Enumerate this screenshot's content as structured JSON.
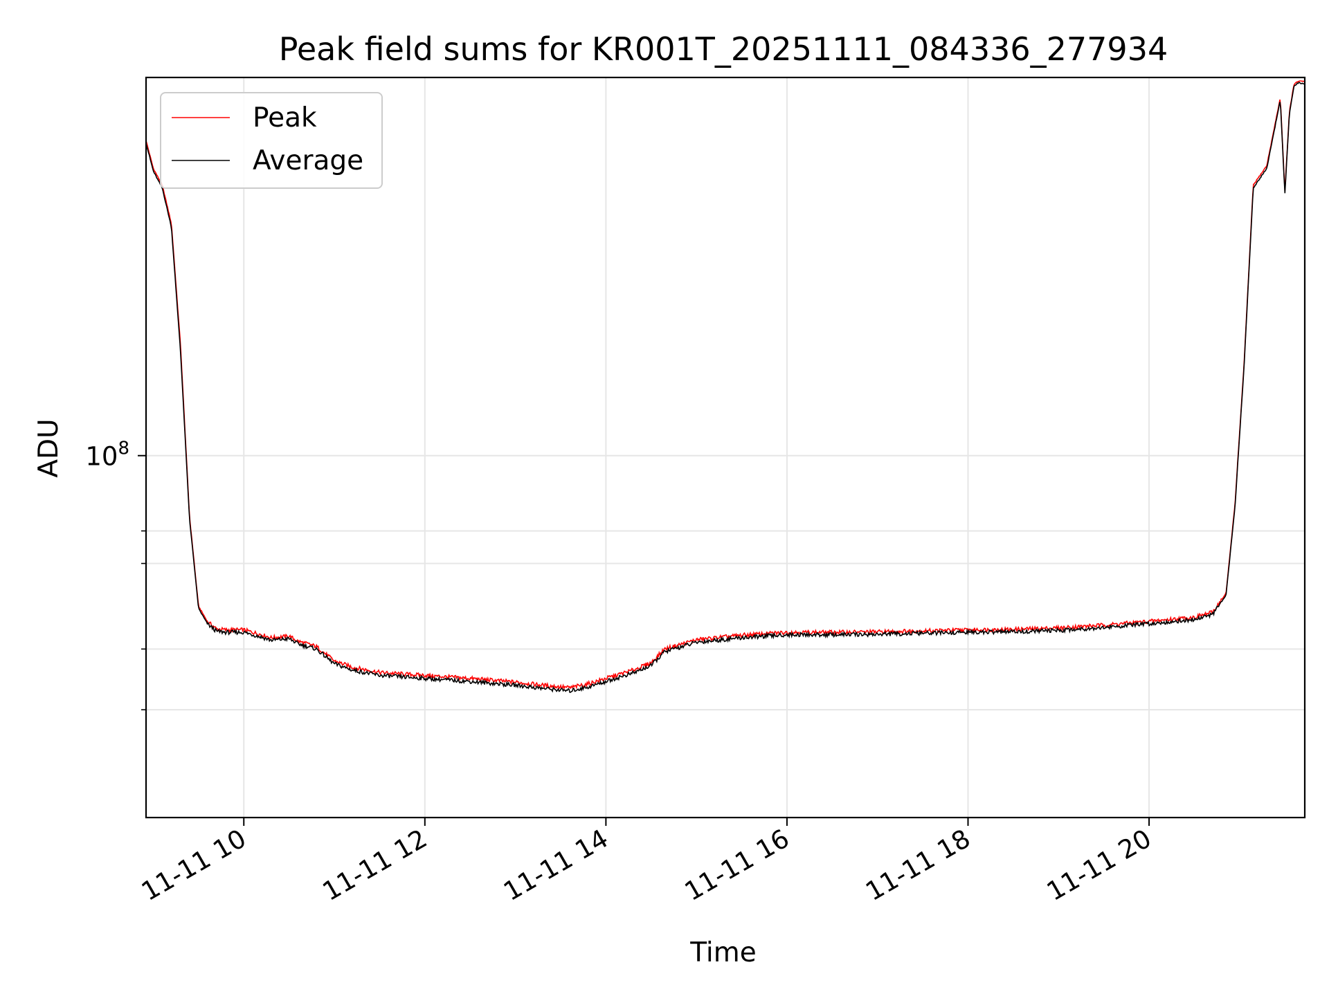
{
  "chart_data": {
    "type": "line",
    "title": "Peak field sums for KR001T_20251111_084336_277934",
    "xlabel": "Time",
    "ylabel": "ADU",
    "yscale": "log",
    "grid": true,
    "legend_position": "top-left",
    "xlim_hours": [
      8.92,
      21.72
    ],
    "ylim": [
      18000000,
      600000000
    ],
    "x_ticks": [
      {
        "value": 10,
        "label": "11-11 10"
      },
      {
        "value": 12,
        "label": "11-11 12"
      },
      {
        "value": 14,
        "label": "11-11 14"
      },
      {
        "value": 16,
        "label": "11-11 16"
      },
      {
        "value": 18,
        "label": "11-11 18"
      },
      {
        "value": 20,
        "label": "11-11 20"
      }
    ],
    "y_major_ticks": [
      {
        "value": 100000000,
        "base": "10",
        "exp": "8"
      }
    ],
    "y_minor_ticks": [
      30000000,
      40000000,
      60000000,
      70000000
    ],
    "x_hours": [
      8.92,
      9.0,
      9.1,
      9.2,
      9.3,
      9.4,
      9.5,
      9.6,
      9.7,
      9.8,
      10.0,
      10.2,
      10.3,
      10.5,
      10.6,
      10.8,
      11.0,
      11.2,
      11.5,
      12.0,
      12.5,
      13.0,
      13.3,
      13.6,
      13.8,
      14.0,
      14.3,
      14.5,
      14.65,
      15.0,
      15.5,
      16.0,
      16.5,
      17.0,
      17.5,
      18.0,
      18.5,
      19.0,
      19.5,
      20.0,
      20.5,
      20.7,
      20.85,
      20.95,
      21.05,
      21.15,
      21.3,
      21.45,
      21.5,
      21.55,
      21.6,
      21.65,
      21.72
    ],
    "series": [
      {
        "name": "Peak",
        "color": "#ff0000",
        "values": [
          445000000,
          390000000,
          360000000,
          300000000,
          170000000,
          75000000,
          49000000,
          45500000,
          44000000,
          43800000,
          43800000,
          42800000,
          42200000,
          42500000,
          41500000,
          40500000,
          37800000,
          36700000,
          35800000,
          35300000,
          34800000,
          34200000,
          33700000,
          33300000,
          33900000,
          34800000,
          36200000,
          37500000,
          40000000,
          41800000,
          42700000,
          43300000,
          43300000,
          43400000,
          43600000,
          43800000,
          43900000,
          44200000,
          44800000,
          45600000,
          46500000,
          47600000,
          52000000,
          80000000,
          155000000,
          360000000,
          395000000,
          545000000,
          350000000,
          510000000,
          580000000,
          590000000,
          588000000
        ]
      },
      {
        "name": "Average",
        "color": "#000000",
        "values": [
          440000000,
          385000000,
          355000000,
          295000000,
          165000000,
          74000000,
          48500000,
          45000000,
          43500000,
          43300000,
          43300000,
          42300000,
          41700000,
          42000000,
          41000000,
          40000000,
          37300000,
          36200000,
          35300000,
          34800000,
          34300000,
          33700000,
          33200000,
          32800000,
          33400000,
          34300000,
          35700000,
          37000000,
          39500000,
          41300000,
          42200000,
          42800000,
          42800000,
          42900000,
          43100000,
          43300000,
          43400000,
          43700000,
          44300000,
          45100000,
          46000000,
          47100000,
          51500000,
          79000000,
          153000000,
          355000000,
          390000000,
          540000000,
          345000000,
          505000000,
          575000000,
          585000000,
          583000000
        ]
      }
    ]
  }
}
